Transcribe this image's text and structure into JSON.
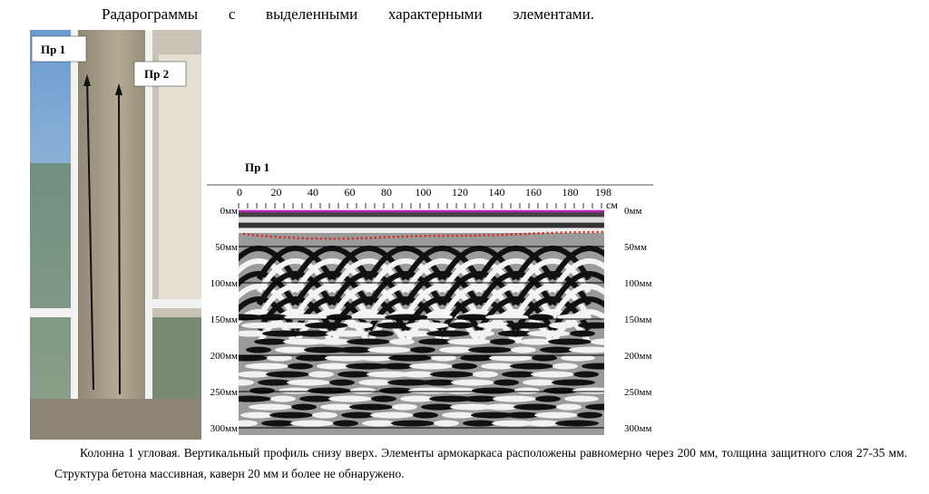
{
  "heading": "Радарограммы с выделенными характерными элементами.",
  "photo": {
    "labels": [
      "Пр 1",
      "Пр 2"
    ]
  },
  "radargram": {
    "title": "Пр 1",
    "x_ticks": [
      "0",
      "20",
      "40",
      "60",
      "80",
      "100",
      "120",
      "140",
      "160",
      "180",
      "198"
    ],
    "x_unit": "см",
    "depth_ticks": [
      "0мм",
      "50мм",
      "100мм",
      "150мм",
      "200мм",
      "250мм",
      "300мм"
    ]
  },
  "caption": "Колонна 1 угловая. Вертикальный профиль снизу вверх. Элементы армокаркаса расположены равномерно через 200 мм, толщина защитного слоя 27-35 мм. Структура бетона массивная, каверн 20 мм и более не обнаружено."
}
